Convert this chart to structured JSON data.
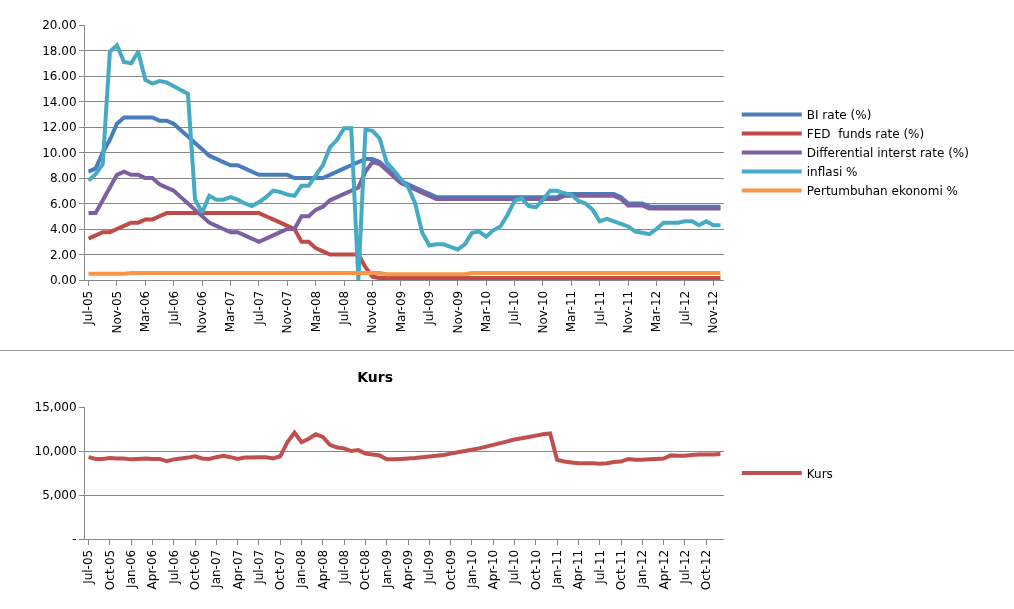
{
  "chart_data": [
    {
      "type": "line",
      "categories": [
        "Jul-05",
        null,
        null,
        null,
        "Nov-05",
        null,
        null,
        null,
        "Mar-06",
        null,
        null,
        null,
        "Jul-06",
        null,
        null,
        null,
        "Nov-06",
        null,
        null,
        null,
        "Mar-07",
        null,
        null,
        null,
        "Jul-07",
        null,
        null,
        null,
        "Nov-07",
        null,
        null,
        null,
        "Mar-08",
        null,
        null,
        null,
        "Jul-08",
        null,
        null,
        null,
        "Nov-08",
        null,
        null,
        null,
        "Mar-09",
        null,
        null,
        null,
        "Jul-09",
        null,
        null,
        null,
        "Nov-09",
        null,
        null,
        null,
        "Mar-10",
        null,
        null,
        null,
        "Jul-10",
        null,
        null,
        null,
        "Nov-10",
        null,
        null,
        null,
        "Mar-11",
        null,
        null,
        null,
        "Jul-11",
        null,
        null,
        null,
        "Nov-11",
        null,
        null,
        null,
        "Mar-12",
        null,
        null,
        null,
        "Jul-12",
        null,
        null,
        null,
        "Nov-12",
        null
      ],
      "series": [
        {
          "name": "BI rate (%)",
          "color": "#4a7ebb",
          "values": [
            8.5,
            8.75,
            10,
            11,
            12.25,
            12.75,
            12.75,
            12.75,
            12.75,
            12.75,
            12.5,
            12.5,
            12.25,
            11.75,
            11.25,
            10.75,
            10.25,
            9.75,
            9.5,
            9.25,
            9.0,
            9.0,
            8.75,
            8.5,
            8.25,
            8.25,
            8.25,
            8.25,
            8.25,
            8.0,
            8.0,
            8.0,
            8.0,
            8.0,
            8.25,
            8.5,
            8.75,
            9.0,
            9.25,
            9.5,
            9.5,
            9.25,
            8.75,
            8.25,
            7.75,
            7.5,
            7.25,
            7.0,
            6.75,
            6.5,
            6.5,
            6.5,
            6.5,
            6.5,
            6.5,
            6.5,
            6.5,
            6.5,
            6.5,
            6.5,
            6.5,
            6.5,
            6.5,
            6.5,
            6.5,
            6.5,
            6.5,
            6.75,
            6.75,
            6.75,
            6.75,
            6.75,
            6.75,
            6.75,
            6.75,
            6.5,
            6.0,
            6.0,
            6.0,
            5.75,
            5.75,
            5.75,
            5.75,
            5.75,
            5.75,
            5.75,
            5.75,
            5.75,
            5.75,
            5.75
          ]
        },
        {
          "name": "FED  funds rate (%)",
          "color": "#be4b48",
          "values": [
            3.25,
            3.5,
            3.75,
            3.75,
            4.0,
            4.25,
            4.5,
            4.5,
            4.75,
            4.75,
            5.0,
            5.25,
            5.25,
            5.25,
            5.25,
            5.25,
            5.25,
            5.25,
            5.25,
            5.25,
            5.25,
            5.25,
            5.25,
            5.25,
            5.25,
            5.0,
            4.75,
            4.5,
            4.25,
            4.0,
            3.0,
            3.0,
            2.5,
            2.25,
            2.0,
            2.0,
            2.0,
            2.0,
            2.0,
            1.0,
            0.25,
            0.15,
            0.15,
            0.15,
            0.15,
            0.15,
            0.15,
            0.15,
            0.15,
            0.15,
            0.15,
            0.15,
            0.15,
            0.15,
            0.15,
            0.15,
            0.15,
            0.15,
            0.15,
            0.15,
            0.15,
            0.15,
            0.15,
            0.15,
            0.15,
            0.15,
            0.15,
            0.15,
            0.15,
            0.15,
            0.15,
            0.15,
            0.15,
            0.15,
            0.15,
            0.15,
            0.15,
            0.15,
            0.15,
            0.15,
            0.15,
            0.15,
            0.15,
            0.15,
            0.15,
            0.15,
            0.15,
            0.15,
            0.15,
            0.15
          ]
        },
        {
          "name": "Differential interst rate (%)",
          "color": "#7d60a0",
          "values": [
            5.25,
            5.25,
            6.25,
            7.25,
            8.25,
            8.5,
            8.25,
            8.25,
            8.0,
            8.0,
            7.5,
            7.25,
            7.0,
            6.5,
            6.0,
            5.5,
            5.0,
            4.5,
            4.25,
            4.0,
            3.75,
            3.75,
            3.5,
            3.25,
            3.0,
            3.25,
            3.5,
            3.75,
            4.0,
            4.0,
            5.0,
            5.0,
            5.5,
            5.75,
            6.25,
            6.5,
            6.75,
            7.0,
            7.25,
            8.5,
            9.25,
            9.1,
            8.6,
            8.1,
            7.6,
            7.35,
            7.1,
            6.85,
            6.6,
            6.35,
            6.35,
            6.35,
            6.35,
            6.35,
            6.35,
            6.35,
            6.35,
            6.35,
            6.35,
            6.35,
            6.35,
            6.35,
            6.35,
            6.35,
            6.35,
            6.35,
            6.35,
            6.6,
            6.6,
            6.6,
            6.6,
            6.6,
            6.6,
            6.6,
            6.6,
            6.35,
            5.85,
            5.85,
            5.85,
            5.6,
            5.6,
            5.6,
            5.6,
            5.6,
            5.6,
            5.6,
            5.6,
            5.6,
            5.6,
            5.6
          ]
        },
        {
          "name": "inflasi %",
          "color": "#46aac5",
          "values": [
            7.8,
            8.3,
            9.1,
            17.9,
            18.4,
            17.1,
            17.0,
            17.9,
            15.7,
            15.4,
            15.6,
            15.5,
            15.2,
            14.9,
            14.6,
            6.3,
            5.3,
            6.6,
            6.3,
            6.3,
            6.5,
            6.3,
            6.0,
            5.8,
            6.1,
            6.5,
            7.0,
            6.9,
            6.7,
            6.6,
            7.4,
            7.4,
            8.2,
            9.0,
            10.4,
            11.0,
            11.9,
            11.9,
            0,
            11.8,
            11.7,
            11.1,
            9.2,
            8.6,
            7.9,
            7.3,
            6.0,
            3.7,
            2.7,
            2.8,
            2.8,
            2.6,
            2.4,
            2.8,
            3.7,
            3.8,
            3.4,
            3.9,
            4.2,
            5.1,
            6.2,
            6.4,
            5.8,
            5.7,
            6.3,
            7.0,
            7.0,
            6.8,
            6.7,
            6.2,
            6.0,
            5.5,
            4.6,
            4.8,
            4.6,
            4.4,
            4.2,
            3.8,
            3.7,
            3.6,
            4.0,
            4.5,
            4.5,
            4.5,
            4.6,
            4.6,
            4.3,
            4.6,
            4.3,
            4.3
          ]
        },
        {
          "name": "Pertumbuhan ekonomi %",
          "color": "#f79646",
          "values": [
            0.5,
            0.5,
            0.5,
            0.5,
            0.5,
            0.5,
            0.55,
            0.55,
            0.55,
            0.55,
            0.55,
            0.55,
            0.55,
            0.55,
            0.55,
            0.55,
            0.55,
            0.55,
            0.55,
            0.55,
            0.55,
            0.55,
            0.55,
            0.55,
            0.55,
            0.55,
            0.55,
            0.55,
            0.55,
            0.55,
            0.55,
            0.55,
            0.55,
            0.55,
            0.55,
            0.55,
            0.55,
            0.55,
            0.55,
            0.55,
            0.55,
            0.55,
            0.45,
            0.45,
            0.45,
            0.45,
            0.45,
            0.45,
            0.45,
            0.45,
            0.45,
            0.45,
            0.45,
            0.45,
            0.55,
            0.55,
            0.55,
            0.55,
            0.55,
            0.55,
            0.55,
            0.55,
            0.55,
            0.55,
            0.55,
            0.55,
            0.55,
            0.55,
            0.55,
            0.55,
            0.55,
            0.55,
            0.55,
            0.55,
            0.55,
            0.55,
            0.55,
            0.55,
            0.55,
            0.55,
            0.55,
            0.55,
            0.55,
            0.55,
            0.55,
            0.55,
            0.55,
            0.55,
            0.55,
            0.55
          ]
        }
      ],
      "ylim": [
        0,
        20
      ],
      "yticks": [
        {
          "value": 0,
          "label": "0.00"
        },
        {
          "value": 2,
          "label": "2.00"
        },
        {
          "value": 4,
          "label": "4.00"
        },
        {
          "value": 6,
          "label": "6.00"
        },
        {
          "value": 8,
          "label": "8.00"
        },
        {
          "value": 10,
          "label": "10.00"
        },
        {
          "value": 12,
          "label": "12.00"
        },
        {
          "value": 14,
          "label": "14.00"
        },
        {
          "value": 16,
          "label": "16.00"
        },
        {
          "value": 18,
          "label": "18.00"
        },
        {
          "value": 20,
          "label": "20.00"
        }
      ],
      "grid": "y",
      "legend": "right"
    },
    {
      "type": "line",
      "title": "Kurs",
      "categories": [
        "Jul-05",
        null,
        null,
        "Oct-05",
        null,
        null,
        "Jan-06",
        null,
        null,
        "Apr-06",
        null,
        null,
        "Jul-06",
        null,
        null,
        "Oct-06",
        null,
        null,
        "Jan-07",
        null,
        null,
        "Apr-07",
        null,
        null,
        "Jul-07",
        null,
        null,
        "Oct-07",
        null,
        null,
        "Jan-08",
        null,
        null,
        "Apr-08",
        null,
        null,
        "Jul-08",
        null,
        null,
        "Oct-08",
        null,
        null,
        "Jan-09",
        null,
        null,
        "Apr-09",
        null,
        null,
        "Jul-09",
        null,
        null,
        "Oct-09",
        null,
        null,
        "Jan-10",
        null,
        null,
        "Apr-10",
        null,
        null,
        "Jul-10",
        null,
        null,
        "Oct-10",
        null,
        null,
        "Jan-11",
        null,
        null,
        "Apr-11",
        null,
        null,
        "Jul-11",
        null,
        null,
        "Oct-11",
        null,
        null,
        "Jan-12",
        null,
        null,
        "Apr-12",
        null,
        null,
        "Jul-12",
        null,
        null,
        "Oct-12",
        null,
        null
      ],
      "series": [
        {
          "name": "Kurs",
          "color": "#c0504d",
          "values": [
            9300,
            9100,
            9100,
            9200,
            9150,
            9150,
            9050,
            9100,
            9150,
            9100,
            9100,
            8850,
            9050,
            9150,
            9250,
            9400,
            9150,
            9100,
            9300,
            9450,
            9300,
            9100,
            9250,
            9250,
            9300,
            9300,
            9150,
            9400,
            11000,
            12100,
            11000,
            11400,
            11900,
            11600,
            10700,
            10400,
            10300,
            10000,
            10100,
            9700,
            9600,
            9500,
            9050,
            9050,
            9100,
            9150,
            9200,
            9300,
            9380,
            9450,
            9550,
            9700,
            9850,
            10000,
            10150,
            10300,
            10500,
            10700,
            10900,
            11100,
            11300,
            11450,
            11600,
            11750,
            11900,
            12000,
            9000,
            8800,
            8700,
            8600,
            8600,
            8600,
            8550,
            8600,
            8750,
            8800,
            9100,
            9000,
            9000,
            9050,
            9100,
            9150,
            9500,
            9450,
            9450,
            9550,
            9600,
            9600,
            9600,
            9650
          ]
        }
      ],
      "ylim": [
        0,
        15000
      ],
      "yticks": [
        {
          "value": 0,
          "label": "-"
        },
        {
          "value": 5000,
          "label": "5,000"
        },
        {
          "value": 10000,
          "label": "10,000"
        },
        {
          "value": 15000,
          "label": "15,000"
        }
      ],
      "grid": "y",
      "legend": "right"
    }
  ]
}
